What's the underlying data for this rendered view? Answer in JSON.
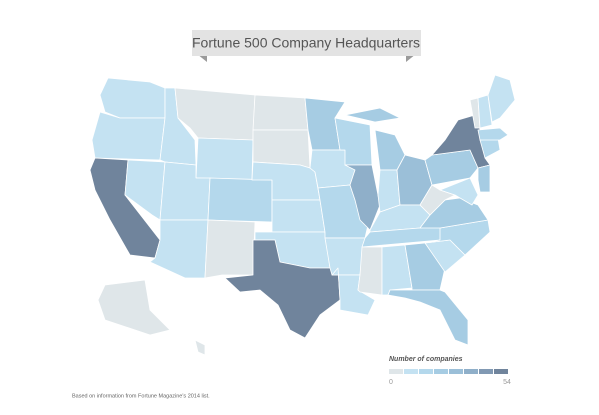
{
  "title": "Fortune 500 Company Headquarters",
  "values": [
    8,
    2,
    53,
    3,
    3,
    0,
    1,
    4,
    5,
    10,
    0,
    0,
    0,
    5,
    3,
    5,
    52,
    18,
    3,
    9,
    5,
    3,
    11,
    32,
    20,
    5,
    28,
    4,
    10,
    0,
    2,
    18,
    17,
    2,
    14,
    21,
    0,
    24,
    54,
    5,
    21,
    16,
    12,
    0,
    2,
    1,
    0,
    0
  ],
  "legend": {
    "title": "Number of companies",
    "min": 0,
    "max": 54,
    "colors": [
      "#dfe6e9",
      "#c4e2f2",
      "#b4d8ec",
      "#a6cce3",
      "#9bbfd8",
      "#8fafc9",
      "#8199b3",
      "#70849c"
    ]
  },
  "footnote": "Based on information from Fortune Magazine's 2014 list."
}
